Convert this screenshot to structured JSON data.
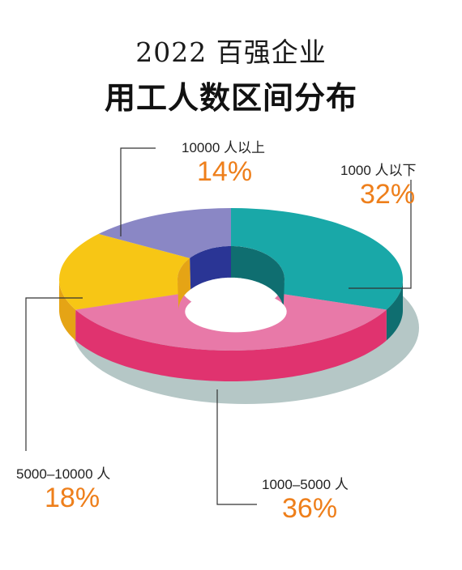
{
  "title_line1": "2022 百强企业",
  "title_line2": "用工人数区间分布",
  "chart_data": {
    "type": "pie",
    "style": "3d-donut",
    "title": "2022 百强企业 用工人数区间分布",
    "slices": [
      {
        "label": "1000 人以下",
        "percent": "32%",
        "value": 32,
        "color": "#19a8a8",
        "side_color": "#0f6e70"
      },
      {
        "label": "1000–5000 人",
        "percent": "36%",
        "value": 36,
        "color": "#e879a8",
        "side_color": "#e0336f"
      },
      {
        "label": "5000–10000 人",
        "percent": "18%",
        "value": 18,
        "color": "#f7c615",
        "side_color": "#e5a415"
      },
      {
        "label": "10000 人以上",
        "percent": "14%",
        "value": 14,
        "color": "#8a87c5",
        "side_color": "#2a3595"
      }
    ]
  }
}
